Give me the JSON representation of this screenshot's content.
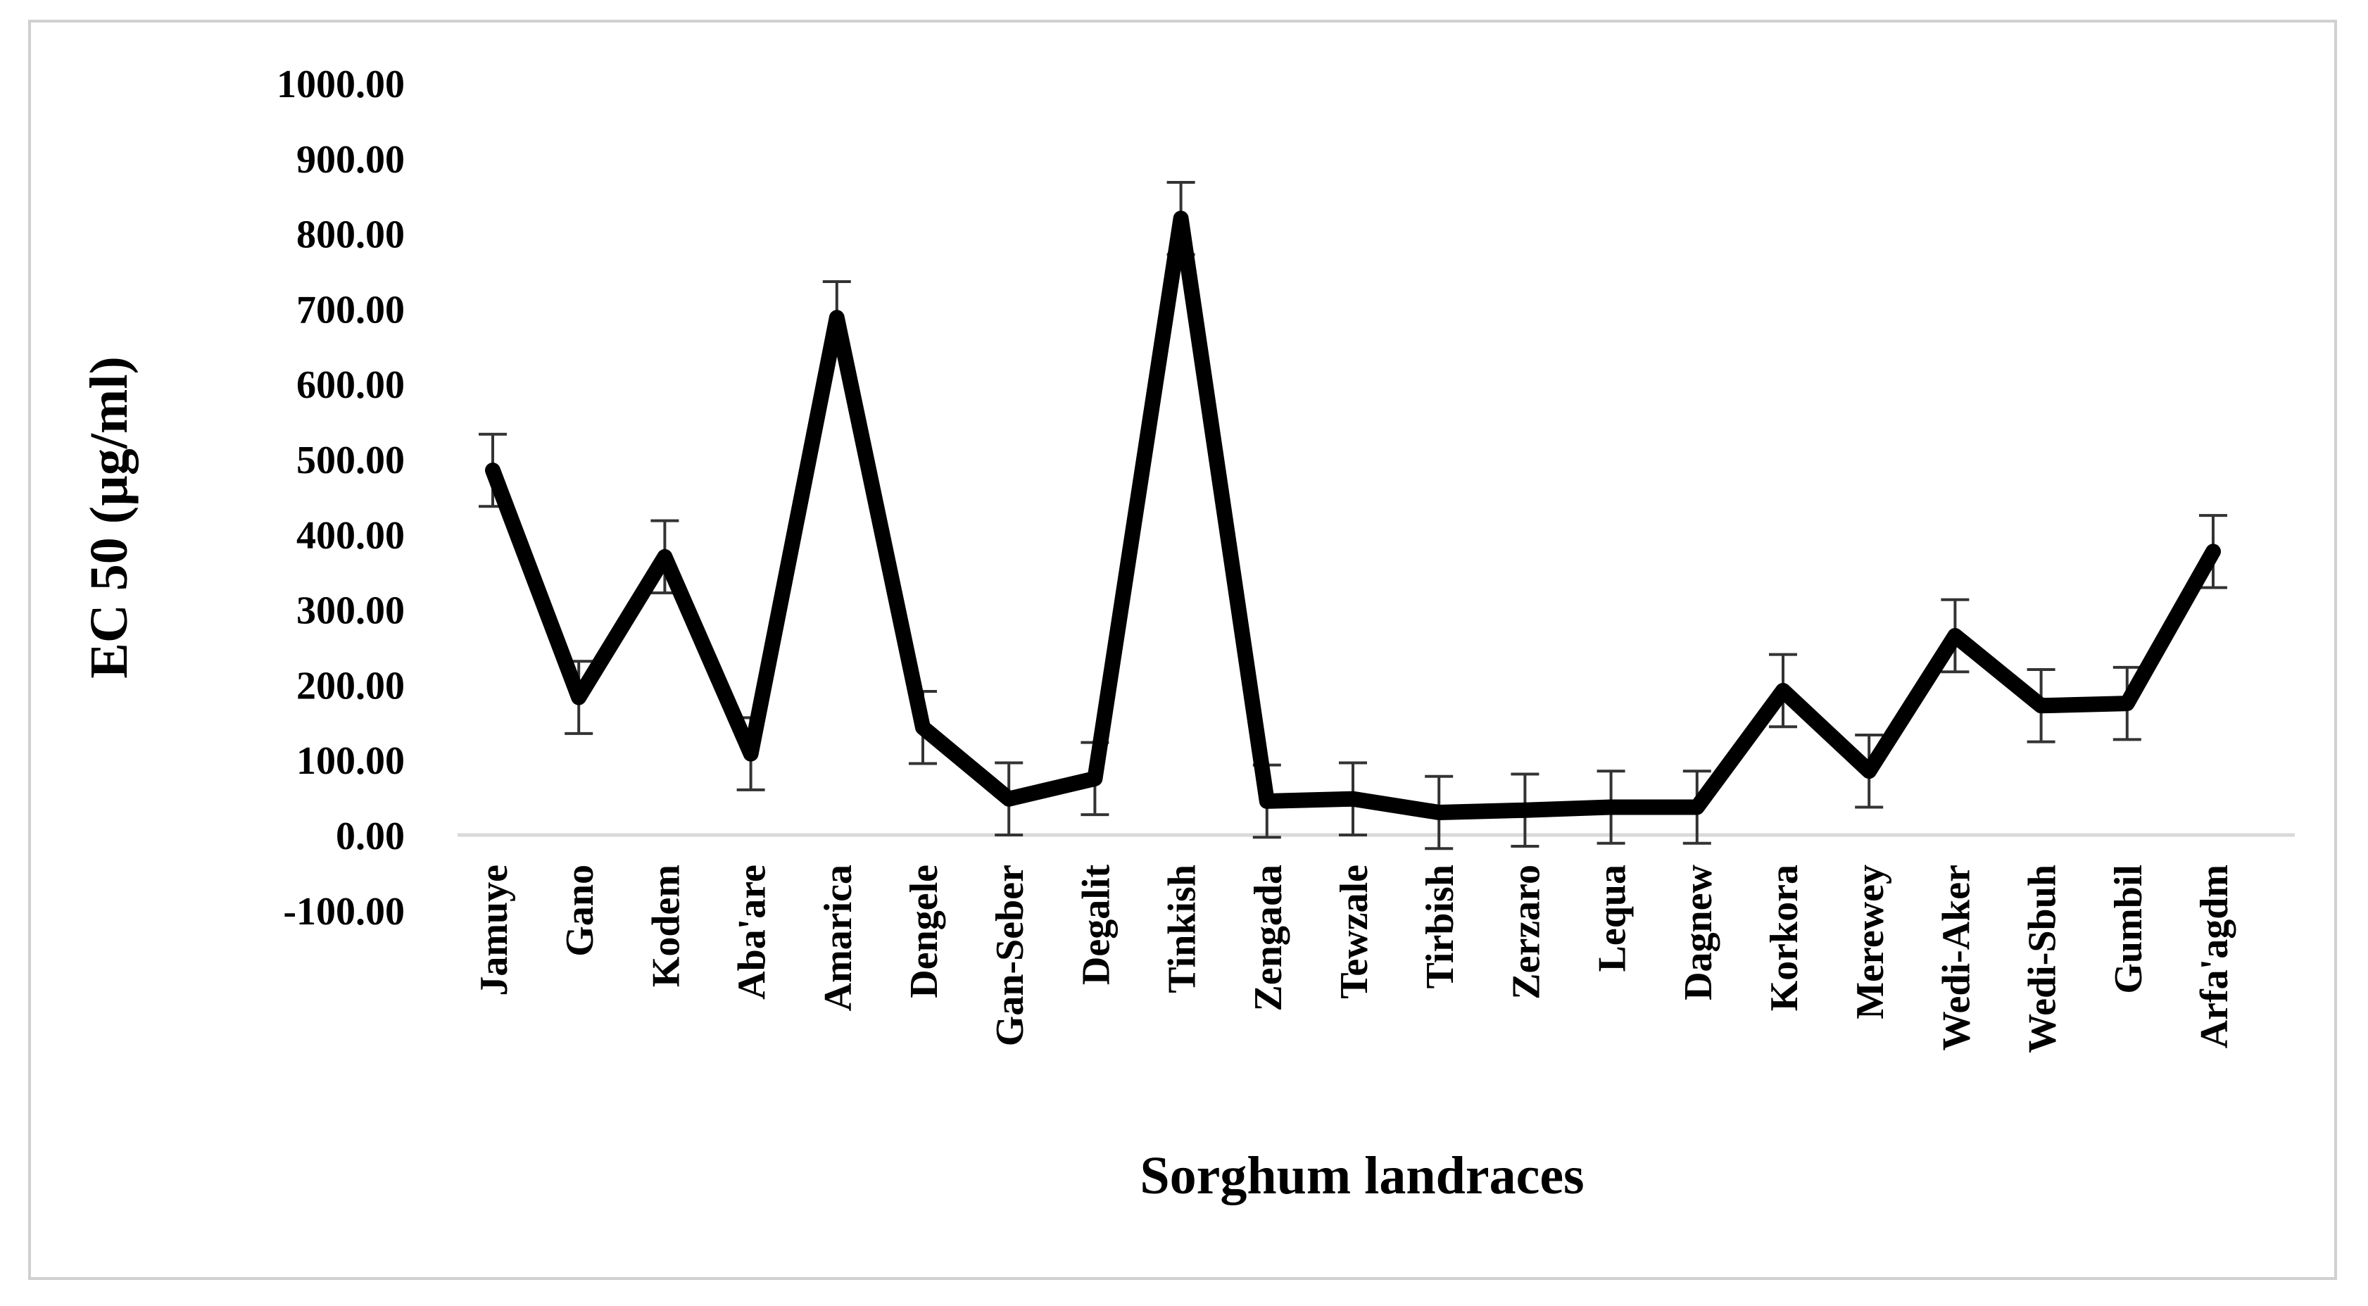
{
  "chart_data": {
    "type": "line",
    "xlabel": "Sorghum landraces",
    "ylabel": "EC 50 (µg/ml)",
    "ylim": [
      -100,
      1000
    ],
    "yticks": [
      "1000.00",
      "900.00",
      "800.00",
      "700.00",
      "600.00",
      "500.00",
      "400.00",
      "300.00",
      "200.00",
      "100.00",
      "0.00",
      "-100.00"
    ],
    "ytick_values": [
      1000,
      900,
      800,
      700,
      600,
      500,
      400,
      300,
      200,
      100,
      0,
      -100
    ],
    "categories": [
      "Jamuye",
      "Gano",
      "Kodem",
      "Aba'are",
      "Amarica",
      "Dengele",
      "Gan-Seber",
      "Degalit",
      "Tinkish",
      "Zengada",
      "Tewzale",
      "Tirbish",
      "Zerzaro",
      "Lequa",
      "Dagnew",
      "Korkora",
      "Merewey",
      "Wedi-Aker",
      "Wedi-Sbuh",
      "Gumbil",
      "Arfa'agdm"
    ],
    "values": [
      485,
      183,
      370,
      108,
      688,
      143,
      48,
      75,
      820,
      45,
      48,
      30,
      33,
      37,
      37,
      192,
      85,
      265,
      172,
      175,
      377
    ],
    "errors": [
      48,
      48,
      48,
      48,
      48,
      48,
      48,
      48,
      48,
      48,
      48,
      48,
      48,
      48,
      48,
      48,
      48,
      48,
      48,
      48,
      48
    ],
    "grid": false,
    "colors": {
      "line": "#000000",
      "axis": "#d9d9d9",
      "error": "#333333"
    }
  }
}
